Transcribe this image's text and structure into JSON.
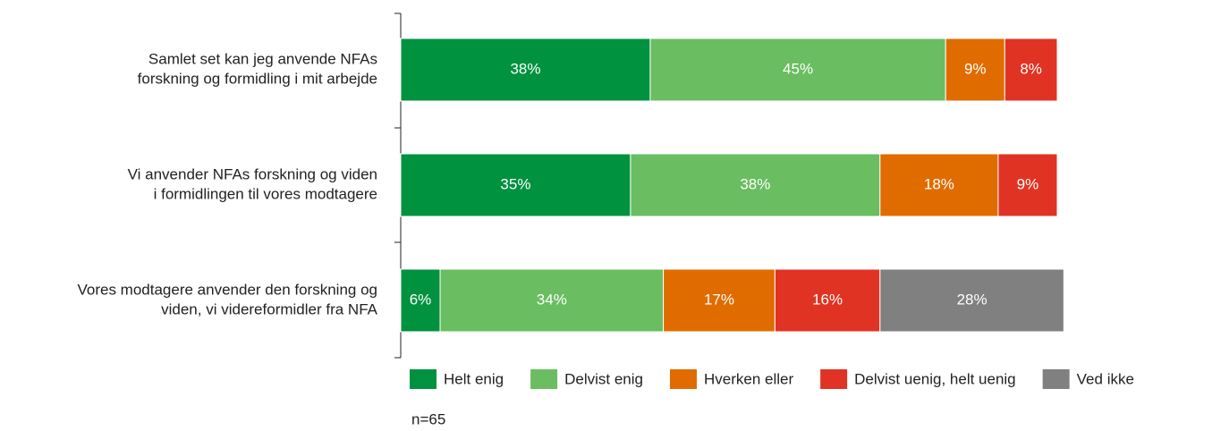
{
  "chart_data": {
    "type": "stacked_bar_horizontal",
    "categories": [
      [
        "Samlet set kan jeg anvende NFAs",
        "forskning og formidling i mit arbejde"
      ],
      [
        "Vi anvender NFAs forskning og viden",
        "i formidlingen til vores modtagere"
      ],
      [
        "Vores modtagere anvender den forskning og",
        "viden, vi videreformidler fra NFA"
      ]
    ],
    "series": [
      {
        "name": "Helt enig",
        "color": "#00923f",
        "values": [
          38,
          35,
          6
        ],
        "value_labels": [
          "38%",
          "35%",
          "6%"
        ]
      },
      {
        "name": "Delvist enig",
        "color": "#6abd60",
        "values": [
          45,
          38,
          34
        ],
        "value_labels": [
          "45%",
          "38%",
          "34%"
        ]
      },
      {
        "name": "Hverken eller",
        "color": "#e06c00",
        "values": [
          9,
          18,
          17
        ],
        "value_labels": [
          "9%",
          "18%",
          "17%"
        ]
      },
      {
        "name": "Delvist uenig, helt uenig",
        "color": "#e03323",
        "values": [
          8,
          9,
          16
        ],
        "value_labels": [
          "8%",
          "9%",
          "16%"
        ]
      },
      {
        "name": "Ved ikke",
        "color": "#808080",
        "values": [
          null,
          null,
          28
        ],
        "value_labels": [
          null,
          null,
          "28%"
        ]
      }
    ],
    "xlim": [
      0,
      100
    ],
    "legend": "bottom",
    "annotations": [
      "n=65"
    ]
  }
}
